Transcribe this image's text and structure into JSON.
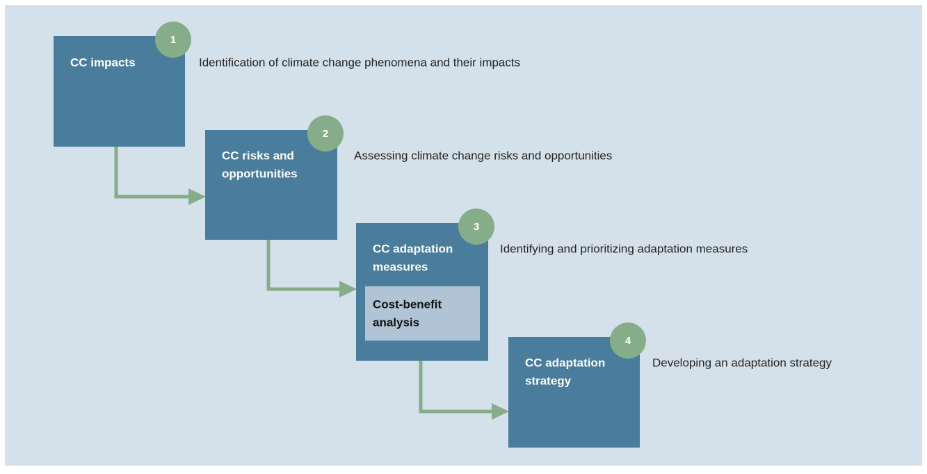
{
  "steps": [
    {
      "number": 1,
      "title": [
        "CC impacts"
      ],
      "description": "Identification of climate change phenomena and their impacts"
    },
    {
      "number": 2,
      "title": [
        "CC risks and",
        "opportunities"
      ],
      "description": "Assessing climate change risks and opportunities"
    },
    {
      "number": 3,
      "title": [
        "CC adaptation",
        "measures"
      ],
      "description": "Identifying and prioritizing adaptation measures",
      "sub_box": [
        "Cost-benefit",
        "analysis"
      ]
    },
    {
      "number": 4,
      "title": [
        "CC adaptation",
        "strategy"
      ],
      "description": "Developing an adaptation strategy"
    }
  ]
}
